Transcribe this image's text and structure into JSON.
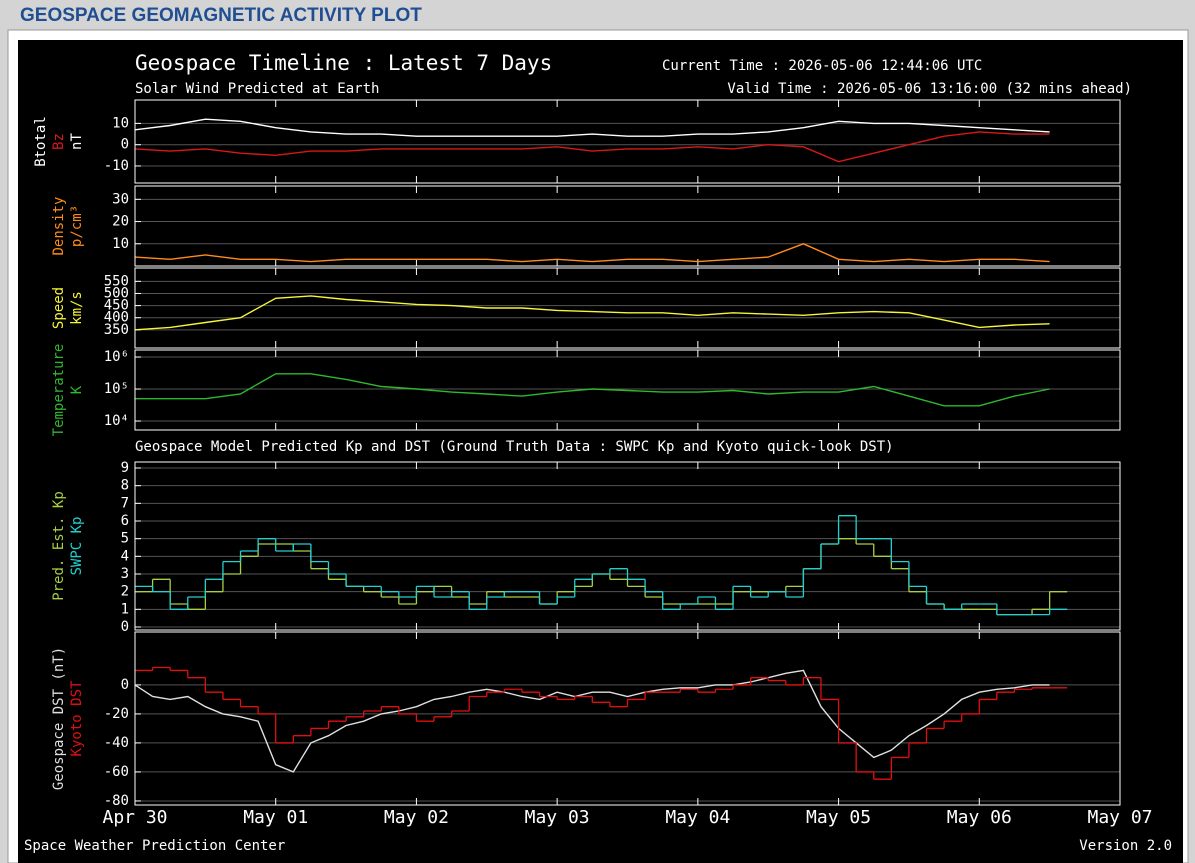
{
  "header": {
    "title": "GEOSPACE GEOMAGNETIC ACTIVITY PLOT"
  },
  "footer": {
    "left": "Space Weather Prediction Center",
    "right": "Version 2.0"
  },
  "chart_data": [
    {
      "type": "line",
      "title": "Geospace Timeline : Latest 7 Days",
      "subtitle": "Solar Wind Predicted at Earth",
      "current_time": "Current Time : 2026-05-06 12:44:06 UTC",
      "valid_time": "Valid Time : 2026-05-06 13:16:00 (32 mins ahead)",
      "ylabel": "nT",
      "xlim": [
        0,
        7
      ],
      "ylim": [
        -18,
        21
      ],
      "yticks": [
        10,
        0,
        -10
      ],
      "grid": true,
      "x": [
        0,
        0.25,
        0.5,
        0.75,
        1,
        1.25,
        1.5,
        1.75,
        2,
        2.25,
        2.5,
        2.75,
        3,
        3.25,
        3.5,
        3.75,
        4,
        4.25,
        4.5,
        4.75,
        5,
        5.25,
        5.5,
        5.75,
        6,
        6.25,
        6.5
      ],
      "series": [
        {
          "name": "Btotal",
          "color": "#ffffff",
          "values": [
            7,
            9,
            12,
            11,
            8,
            6,
            5,
            5,
            4,
            4,
            4,
            4,
            4,
            5,
            4,
            4,
            5,
            5,
            6,
            8,
            11,
            10,
            10,
            9,
            8,
            7,
            6
          ]
        },
        {
          "name": "Bz",
          "color": "#d81818",
          "values": [
            -2,
            -3,
            -2,
            -4,
            -5,
            -3,
            -3,
            -2,
            -2,
            -2,
            -2,
            -2,
            -1,
            -3,
            -2,
            -2,
            -1,
            -2,
            0,
            -1,
            -8,
            -4,
            0,
            4,
            6,
            5,
            5
          ]
        }
      ]
    },
    {
      "type": "line",
      "ylabel": "p/cm³",
      "xlim": [
        0,
        7
      ],
      "ylim": [
        0,
        36
      ],
      "yticks": [
        30,
        20,
        10
      ],
      "grid": true,
      "x": [
        0,
        0.25,
        0.5,
        0.75,
        1,
        1.25,
        1.5,
        1.75,
        2,
        2.25,
        2.5,
        2.75,
        3,
        3.25,
        3.5,
        3.75,
        4,
        4.25,
        4.5,
        4.75,
        5,
        5.25,
        5.5,
        5.75,
        6,
        6.25,
        6.5
      ],
      "series": [
        {
          "name": "Density",
          "color": "#ff8c1a",
          "values": [
            4,
            3,
            5,
            3,
            3,
            2,
            3,
            3,
            3,
            3,
            3,
            2,
            3,
            2,
            3,
            3,
            2,
            3,
            4,
            10,
            3,
            2,
            3,
            2,
            3,
            3,
            2
          ]
        }
      ]
    },
    {
      "type": "line",
      "ylabel": "km/s",
      "xlim": [
        0,
        7
      ],
      "ylim": [
        275,
        605
      ],
      "yticks": [
        550,
        500,
        450,
        400,
        350
      ],
      "grid": true,
      "x": [
        0,
        0.25,
        0.5,
        0.75,
        1,
        1.25,
        1.5,
        1.75,
        2,
        2.25,
        2.5,
        2.75,
        3,
        3.25,
        3.5,
        3.75,
        4,
        4.25,
        4.5,
        4.75,
        5,
        5.25,
        5.5,
        5.75,
        6,
        6.25,
        6.5
      ],
      "series": [
        {
          "name": "Speed",
          "color": "#f5f53a",
          "values": [
            350,
            360,
            380,
            400,
            480,
            490,
            475,
            465,
            455,
            450,
            440,
            440,
            430,
            425,
            420,
            420,
            410,
            420,
            415,
            410,
            420,
            425,
            420,
            390,
            360,
            370,
            375
          ]
        }
      ]
    },
    {
      "type": "line",
      "ylabel": "K",
      "log_y": true,
      "xlim": [
        0,
        7
      ],
      "ylim": [
        5250,
        1660000
      ],
      "yticks": [
        {
          "value": 1000000,
          "label": "10⁶"
        },
        {
          "value": 100000,
          "label": "10⁵"
        },
        {
          "value": 10000,
          "label": "10⁴"
        }
      ],
      "grid": true,
      "x": [
        0,
        0.25,
        0.5,
        0.75,
        1,
        1.25,
        1.5,
        1.75,
        2,
        2.25,
        2.5,
        2.75,
        3,
        3.25,
        3.5,
        3.75,
        4,
        4.25,
        4.5,
        4.75,
        5,
        5.25,
        5.5,
        5.75,
        6,
        6.25,
        6.5
      ],
      "series": [
        {
          "name": "Temperature",
          "color": "#2fb82f",
          "values": [
            50000,
            50000,
            50000,
            70000,
            300000,
            300000,
            200000,
            120000,
            100000,
            80000,
            70000,
            60000,
            80000,
            100000,
            90000,
            80000,
            80000,
            90000,
            70000,
            80000,
            80000,
            120000,
            60000,
            30000,
            30000,
            60000,
            100000
          ]
        }
      ]
    },
    {
      "type": "line",
      "title": "Geospace Model Predicted Kp and DST (Ground Truth Data : SWPC Kp and Kyoto quick-look DST)",
      "xlim": [
        0,
        7
      ],
      "ylim": [
        -0.17,
        9.34
      ],
      "yticks": [
        9,
        8,
        7,
        6,
        5,
        4,
        3,
        2,
        1,
        0
      ],
      "grid": true,
      "x": [
        0,
        0.125,
        0.25,
        0.375,
        0.5,
        0.625,
        0.75,
        0.875,
        1,
        1.125,
        1.25,
        1.375,
        1.5,
        1.625,
        1.75,
        1.875,
        2,
        2.125,
        2.25,
        2.375,
        2.5,
        2.625,
        2.75,
        2.875,
        3,
        3.125,
        3.25,
        3.375,
        3.5,
        3.625,
        3.75,
        3.875,
        4,
        4.125,
        4.25,
        4.375,
        4.5,
        4.625,
        4.75,
        4.875,
        5,
        5.125,
        5.25,
        5.375,
        5.5,
        5.625,
        5.75,
        5.875,
        6,
        6.125,
        6.25,
        6.375,
        6.5
      ],
      "series": [
        {
          "name": "Pred. Est. Kp",
          "color": "#a8d040",
          "step": true,
          "values": [
            2,
            2.7,
            1.3,
            1,
            2,
            3,
            4,
            4.7,
            4.7,
            4.3,
            3.3,
            2.7,
            2.3,
            2,
            1.7,
            1.3,
            2,
            2.3,
            1.7,
            1.3,
            2,
            1.7,
            1.7,
            1.3,
            2,
            2.3,
            3,
            2.7,
            2.3,
            1.7,
            1.3,
            1.3,
            1.3,
            1.3,
            2,
            2,
            2,
            2.3,
            3.3,
            4.7,
            5,
            4.7,
            4,
            3.3,
            2,
            1.3,
            1,
            1,
            1,
            0.7,
            0.7,
            1,
            2
          ]
        },
        {
          "name": "SWPC Kp",
          "color": "#22d0d0",
          "step": true,
          "values": [
            2.3,
            2,
            1,
            1.7,
            2.7,
            3.7,
            4.3,
            5,
            4.3,
            4.7,
            3.7,
            3,
            2.3,
            2.3,
            2,
            1.7,
            2.3,
            1.7,
            2,
            1,
            1.7,
            2,
            2,
            1.3,
            1.7,
            2.7,
            3,
            3.3,
            2.7,
            2,
            1,
            1.3,
            1.7,
            1,
            2.3,
            1.7,
            2,
            1.7,
            3.3,
            4.7,
            6.3,
            5,
            5,
            3.7,
            2.3,
            1.3,
            1,
            1.3,
            1.3,
            0.7,
            0.7,
            0.7,
            1
          ]
        }
      ]
    },
    {
      "type": "line",
      "xlim": [
        0,
        7
      ],
      "ylim": [
        -82.8,
        36.5
      ],
      "yticks": [
        0,
        -20,
        -40,
        -60,
        -80
      ],
      "grid": true,
      "xticks": [
        {
          "value": 0,
          "label": "Apr 30"
        },
        {
          "value": 1,
          "label": "May 01"
        },
        {
          "value": 2,
          "label": "May 02"
        },
        {
          "value": 3,
          "label": "May 03"
        },
        {
          "value": 4,
          "label": "May 04"
        },
        {
          "value": 5,
          "label": "May 05"
        },
        {
          "value": 6,
          "label": "May 06"
        },
        {
          "value": 7,
          "label": "May 07"
        }
      ],
      "x": [
        0,
        0.125,
        0.25,
        0.375,
        0.5,
        0.625,
        0.75,
        0.875,
        1,
        1.125,
        1.25,
        1.375,
        1.5,
        1.625,
        1.75,
        1.875,
        2,
        2.125,
        2.25,
        2.375,
        2.5,
        2.625,
        2.75,
        2.875,
        3,
        3.125,
        3.25,
        3.375,
        3.5,
        3.625,
        3.75,
        3.875,
        4,
        4.125,
        4.25,
        4.375,
        4.5,
        4.625,
        4.75,
        4.875,
        5,
        5.125,
        5.25,
        5.375,
        5.5,
        5.625,
        5.75,
        5.875,
        6,
        6.125,
        6.25,
        6.375,
        6.5
      ],
      "series": [
        {
          "name": "Geospace DST (nT)",
          "color": "#e0e0e0",
          "values": [
            0,
            -8,
            -10,
            -8,
            -15,
            -20,
            -22,
            -25,
            -55,
            -60,
            -40,
            -35,
            -28,
            -25,
            -20,
            -18,
            -15,
            -10,
            -8,
            -5,
            -3,
            -5,
            -8,
            -10,
            -5,
            -8,
            -5,
            -5,
            -8,
            -5,
            -3,
            -2,
            -2,
            0,
            0,
            2,
            5,
            8,
            10,
            -15,
            -30,
            -40,
            -50,
            -45,
            -35,
            -28,
            -20,
            -10,
            -5,
            -3,
            -2,
            0,
            0
          ]
        },
        {
          "name": "Kyoto DST",
          "color": "#e01010",
          "step": true,
          "values": [
            10,
            12,
            10,
            5,
            -5,
            -10,
            -15,
            -20,
            -40,
            -35,
            -30,
            -25,
            -22,
            -18,
            -15,
            -20,
            -25,
            -22,
            -18,
            -8,
            -5,
            -3,
            -5,
            -8,
            -10,
            -8,
            -12,
            -15,
            -10,
            -5,
            -5,
            -3,
            -5,
            -3,
            0,
            5,
            3,
            0,
            5,
            -10,
            -40,
            -60,
            -65,
            -50,
            -40,
            -30,
            -25,
            -20,
            -10,
            -5,
            -3,
            -2,
            -2
          ]
        }
      ]
    }
  ]
}
